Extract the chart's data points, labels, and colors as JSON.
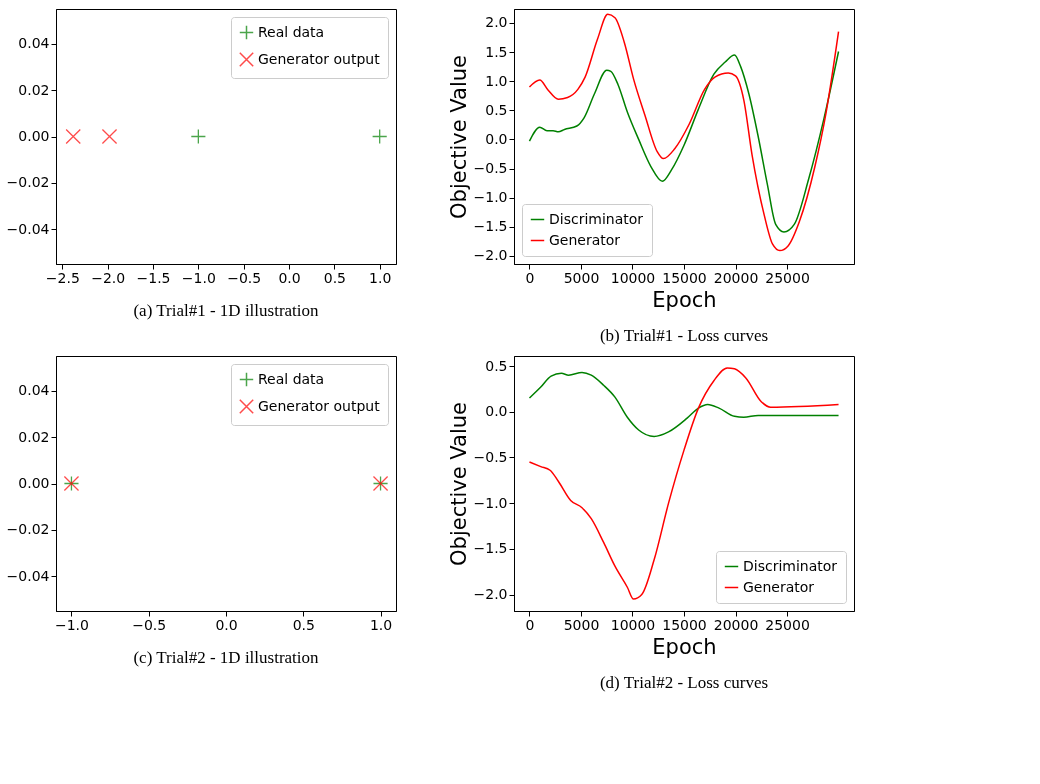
{
  "chart_data": [
    {
      "type": "scatter",
      "title": "(a) Trial#1 - 1D illustration",
      "xlim": [
        -2.57,
        1.18
      ],
      "xticks": [
        {
          "value": -2.5,
          "label": "−2.5"
        },
        {
          "value": -2.0,
          "label": "−2.0"
        },
        {
          "value": -1.5,
          "label": "−1.5"
        },
        {
          "value": -1.0,
          "label": "−1.0"
        },
        {
          "value": -0.5,
          "label": "−0.5"
        },
        {
          "value": 0,
          "label": "0.0"
        },
        0.5,
        {
          "value": 1,
          "label": "1.0"
        }
      ],
      "ylim": [
        -0.055,
        0.055
      ],
      "yticks": [
        {
          "value": -0.04,
          "label": "−0.04"
        },
        {
          "value": -0.02,
          "label": "−0.02"
        },
        {
          "value": 0,
          "label": "0.00"
        },
        0.02,
        0.04
      ],
      "legend": "top right",
      "grid": false,
      "series": [
        {
          "name": "Real data",
          "color": "#008000",
          "marker": "plus",
          "x": [
            -1,
            1
          ],
          "values": [
            0,
            0
          ]
        },
        {
          "name": "Generator output",
          "color": "#ff0000",
          "marker": "x",
          "x": [
            -2.38,
            -1.98
          ],
          "values": [
            0,
            0
          ]
        }
      ]
    },
    {
      "type": "line",
      "title": "(b) Trial#1 - Loss curves",
      "xlabel": "Epoch",
      "ylabel": "Objective Value",
      "xlim": [
        -1500,
        31500
      ],
      "xticks": [
        0,
        5000,
        10000,
        15000,
        20000,
        25000
      ],
      "ylim": [
        -2.14,
        2.24
      ],
      "yticks": [
        {
          "value": -2.0,
          "label": "−2.0"
        },
        {
          "value": -1.5,
          "label": "−1.5"
        },
        {
          "value": -1.0,
          "label": "−1.0"
        },
        {
          "value": -0.5,
          "label": "−0.5"
        },
        {
          "value": 0,
          "label": "0.0"
        },
        0.5,
        {
          "value": 1,
          "label": "1.0"
        },
        1.5,
        {
          "value": 2,
          "label": "2.0"
        }
      ],
      "legend": "bottom left",
      "grid": false,
      "series": [
        {
          "name": "Discriminator",
          "color": "#008000",
          "x": [
            0,
            1000,
            1700,
            2300,
            2800,
            3400,
            4600,
            5300,
            6300,
            7500,
            7900,
            8600,
            9500,
            10600,
            11800,
            12900,
            13800,
            15000,
            16400,
            17900,
            19000,
            19900,
            20500,
            21300,
            22200,
            23100,
            23900,
            24700,
            25700,
            27100,
            28600,
            30000
          ],
          "values": [
            -0.03,
            0.21,
            0.15,
            0.15,
            0.13,
            0.17,
            0.23,
            0.37,
            0.78,
            1.19,
            1.17,
            0.94,
            0.47,
            0.0,
            -0.47,
            -0.72,
            -0.52,
            -0.1,
            0.52,
            1.12,
            1.33,
            1.45,
            1.25,
            0.78,
            0.05,
            -0.78,
            -1.46,
            -1.59,
            -1.46,
            -0.68,
            0.37,
            1.51
          ]
        },
        {
          "name": "Generator",
          "color": "#ff0000",
          "x": [
            0,
            1000,
            1800,
            2800,
            3700,
            4700,
            5400,
            6600,
            7600,
            8300,
            9200,
            10100,
            11200,
            12400,
            13000,
            14100,
            15500,
            17000,
            18000,
            19300,
            20000,
            20800,
            21600,
            22800,
            23600,
            24300,
            25100,
            26200,
            27700,
            28800,
            30000
          ],
          "values": [
            0.9,
            1.02,
            0.85,
            0.69,
            0.72,
            0.86,
            1.07,
            1.72,
            2.15,
            2.09,
            1.67,
            1.04,
            0.42,
            -0.21,
            -0.33,
            -0.16,
            0.26,
            0.86,
            1.07,
            1.14,
            1.09,
            0.68,
            -0.26,
            -1.31,
            -1.8,
            -1.91,
            -1.83,
            -1.41,
            -0.47,
            0.47,
            1.85
          ]
        }
      ]
    },
    {
      "type": "scatter",
      "title": "(c) Trial#2 - 1D illustration",
      "xlim": [
        -1.1,
        1.1
      ],
      "xticks": [
        {
          "value": -1.0,
          "label": "−1.0"
        },
        {
          "value": -0.5,
          "label": "−0.5"
        },
        {
          "value": 0,
          "label": "0.0"
        },
        0.5,
        {
          "value": 1,
          "label": "1.0"
        }
      ],
      "ylim": [
        -0.055,
        0.055
      ],
      "yticks": [
        {
          "value": -0.04,
          "label": "−0.04"
        },
        {
          "value": -0.02,
          "label": "−0.02"
        },
        {
          "value": 0,
          "label": "0.00"
        },
        0.02,
        0.04
      ],
      "legend": "top right",
      "grid": false,
      "series": [
        {
          "name": "Real data",
          "color": "#008000",
          "marker": "plus",
          "x": [
            -1,
            1
          ],
          "values": [
            0,
            0
          ]
        },
        {
          "name": "Generator output",
          "color": "#ff0000",
          "marker": "x",
          "x": [
            -1,
            1
          ],
          "values": [
            0,
            0
          ]
        }
      ]
    },
    {
      "type": "line",
      "title": "(d) Trial#2 - Loss curves",
      "xlabel": "Epoch",
      "ylabel": "Objective Value",
      "xlim": [
        -1500,
        31500
      ],
      "xticks": [
        0,
        5000,
        10000,
        15000,
        20000,
        25000
      ],
      "ylim": [
        -2.18,
        0.61
      ],
      "yticks": [
        {
          "value": -2.0,
          "label": "−2.0"
        },
        {
          "value": -1.5,
          "label": "−1.5"
        },
        {
          "value": -1.0,
          "label": "−1.0"
        },
        {
          "value": -0.5,
          "label": "−0.5"
        },
        {
          "value": 0,
          "label": "0.0"
        },
        0.5
      ],
      "legend": "bottom right",
      "grid": false,
      "series": [
        {
          "name": "Discriminator",
          "color": "#008000",
          "x": [
            0,
            1100,
            2100,
            3100,
            3800,
            5100,
            6000,
            7200,
            8300,
            9500,
            10600,
            12100,
            13500,
            15300,
            16400,
            17300,
            18400,
            19900,
            20800,
            22200,
            30000
          ],
          "values": [
            0.15,
            0.27,
            0.39,
            0.42,
            0.4,
            0.43,
            0.4,
            0.29,
            0.16,
            -0.06,
            -0.2,
            -0.27,
            -0.22,
            -0.07,
            0.04,
            0.08,
            0.04,
            -0.05,
            -0.06,
            -0.04,
            -0.04
          ]
        },
        {
          "name": "Generator",
          "color": "#ff0000",
          "x": [
            0,
            1100,
            2000,
            2800,
            4000,
            5100,
            6000,
            7200,
            8300,
            9500,
            10100,
            10900,
            12100,
            13500,
            15000,
            16400,
            17900,
            19200,
            19900,
            21000,
            22500,
            23400,
            30000
          ],
          "values": [
            -0.55,
            -0.6,
            -0.64,
            -0.76,
            -0.97,
            -1.05,
            -1.17,
            -1.43,
            -1.69,
            -1.92,
            -2.05,
            -2.0,
            -1.62,
            -1.0,
            -0.42,
            0.04,
            0.34,
            0.48,
            0.47,
            0.37,
            0.11,
            0.05,
            0.08
          ]
        }
      ]
    }
  ]
}
